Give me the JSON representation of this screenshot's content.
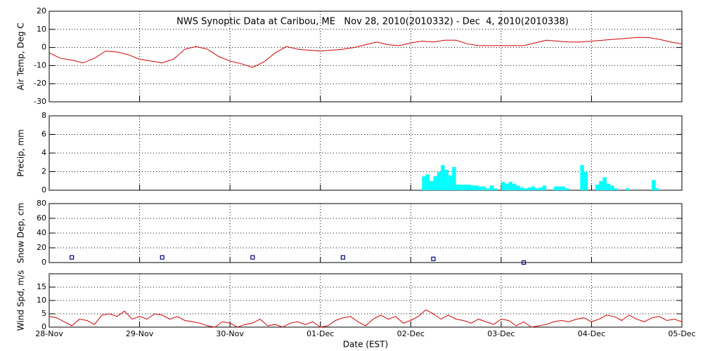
{
  "chart_data": [
    {
      "type": "line",
      "title": "NWS Synoptic Data at Caribou, ME   Nov 28, 2010(2010332) - Dec  4, 2010(2010338)",
      "ylabel": "Air Temp, Deg C",
      "color": "#d00000",
      "grid": true,
      "xlim": [
        0,
        168
      ],
      "xticks": [
        {
          "value": 0,
          "label": "28-Nov"
        },
        {
          "value": 24,
          "label": "29-Nov"
        },
        {
          "value": 48,
          "label": "30-Nov"
        },
        {
          "value": 72,
          "label": "01-Dec"
        },
        {
          "value": 96,
          "label": "02-Dec"
        },
        {
          "value": 120,
          "label": "03-Dec"
        },
        {
          "value": 144,
          "label": "04-Dec"
        },
        {
          "value": 168,
          "label": "05-Dec"
        }
      ],
      "ylim": [
        -30,
        20
      ],
      "yticks": [
        -30,
        -20,
        -10,
        0,
        10,
        20
      ],
      "x": [
        0,
        3,
        6,
        9,
        12,
        15,
        18,
        21,
        24,
        27,
        30,
        33,
        36,
        39,
        42,
        45,
        48,
        51,
        54,
        57,
        60,
        63,
        66,
        69,
        72,
        75,
        78,
        81,
        84,
        87,
        90,
        93,
        96,
        99,
        102,
        105,
        108,
        111,
        114,
        117,
        120,
        123,
        126,
        129,
        132,
        135,
        138,
        141,
        144,
        147,
        150,
        153,
        156,
        159,
        162,
        165,
        168
      ],
      "values": [
        -3,
        -6,
        -7,
        -8.5,
        -6,
        -2,
        -2.5,
        -4,
        -6.5,
        -7.5,
        -8.5,
        -6.5,
        -1,
        0.5,
        -1,
        -5,
        -7.5,
        -9,
        -11,
        -8,
        -3,
        0.5,
        -1,
        -1.5,
        -2,
        -1.5,
        -1,
        0,
        1.5,
        3,
        1.5,
        1,
        2.5,
        3.5,
        3,
        4,
        4,
        2,
        1,
        1,
        1,
        1,
        1,
        2.5,
        4,
        3.5,
        3,
        3,
        3.5,
        4,
        4.5,
        5,
        5.5,
        5.5,
        4.5,
        3,
        2
      ]
    },
    {
      "type": "bar",
      "ylabel": "Precip, mm",
      "color": "#00ffff",
      "grid": true,
      "xlim": [
        0,
        168
      ],
      "xticks": [
        {
          "value": 0,
          "label": "28-Nov"
        },
        {
          "value": 24,
          "label": "29-Nov"
        },
        {
          "value": 48,
          "label": "30-Nov"
        },
        {
          "value": 72,
          "label": "01-Dec"
        },
        {
          "value": 96,
          "label": "02-Dec"
        },
        {
          "value": 120,
          "label": "03-Dec"
        },
        {
          "value": 144,
          "label": "04-Dec"
        },
        {
          "value": 168,
          "label": "05-Dec"
        }
      ],
      "ylim": [
        0,
        8
      ],
      "yticks": [
        0,
        2,
        4,
        6,
        8
      ],
      "x": [
        99,
        100,
        101,
        102,
        103,
        104,
        105,
        106,
        107,
        108,
        109,
        110,
        111,
        112,
        113,
        114,
        115,
        116,
        117,
        118,
        119,
        120,
        121,
        122,
        123,
        124,
        125,
        126,
        127,
        128,
        129,
        130,
        131,
        132,
        133,
        134,
        135,
        136,
        137,
        138,
        139,
        140,
        141,
        142,
        143,
        144,
        145,
        146,
        147,
        148,
        149,
        150,
        151,
        152,
        153,
        154,
        155,
        156,
        157,
        158,
        159,
        160,
        161
      ],
      "values": [
        1.5,
        1.7,
        1.0,
        1.5,
        2.0,
        2.7,
        2.2,
        1.6,
        2.5,
        0.6,
        0.6,
        0.6,
        0.6,
        0.5,
        0.5,
        0.4,
        0.4,
        0.2,
        0.5,
        0.2,
        0,
        0.9,
        0.7,
        0.9,
        0.7,
        0.5,
        0.3,
        0.2,
        0.3,
        0.4,
        0.2,
        0.3,
        0.5,
        0,
        0,
        0.4,
        0.4,
        0.4,
        0.2,
        0,
        0,
        0,
        2.7,
        2.0,
        0,
        0,
        0.6,
        1.0,
        1.4,
        0.7,
        0.5,
        0.2,
        0,
        0,
        0.2,
        0,
        0,
        0,
        0,
        0,
        0,
        1.1,
        0.2
      ]
    },
    {
      "type": "scatter",
      "ylabel": "Snow Dep, cm",
      "color": "#000080",
      "grid": true,
      "xlim": [
        0,
        168
      ],
      "xticks": [
        {
          "value": 0,
          "label": "28-Nov"
        },
        {
          "value": 24,
          "label": "29-Nov"
        },
        {
          "value": 48,
          "label": "30-Nov"
        },
        {
          "value": 72,
          "label": "01-Dec"
        },
        {
          "value": 96,
          "label": "02-Dec"
        },
        {
          "value": 120,
          "label": "03-Dec"
        },
        {
          "value": 144,
          "label": "04-Dec"
        },
        {
          "value": 168,
          "label": "05-Dec"
        }
      ],
      "ylim": [
        0,
        80
      ],
      "yticks": [
        0,
        20,
        40,
        60,
        80
      ],
      "x": [
        6,
        30,
        54,
        78,
        102,
        126
      ],
      "values": [
        7,
        7,
        7,
        7,
        5,
        0
      ]
    },
    {
      "type": "line",
      "ylabel": "Wind Spd, m/s",
      "xlabel": "Date (EST)",
      "color": "#d00000",
      "grid": true,
      "xlim": [
        0,
        168
      ],
      "xticks": [
        {
          "value": 0,
          "label": "28-Nov"
        },
        {
          "value": 24,
          "label": "29-Nov"
        },
        {
          "value": 48,
          "label": "30-Nov"
        },
        {
          "value": 72,
          "label": "01-Dec"
        },
        {
          "value": 96,
          "label": "02-Dec"
        },
        {
          "value": 120,
          "label": "03-Dec"
        },
        {
          "value": 144,
          "label": "04-Dec"
        },
        {
          "value": 168,
          "label": "05-Dec"
        }
      ],
      "ylim": [
        0,
        20
      ],
      "yticks": [
        0,
        5,
        10,
        15
      ],
      "x": [
        0,
        2,
        4,
        6,
        8,
        10,
        12,
        14,
        16,
        18,
        20,
        22,
        24,
        26,
        28,
        30,
        32,
        34,
        36,
        38,
        40,
        42,
        44,
        46,
        48,
        50,
        52,
        54,
        56,
        58,
        60,
        62,
        64,
        66,
        68,
        70,
        72,
        74,
        76,
        78,
        80,
        82,
        84,
        86,
        88,
        90,
        92,
        94,
        96,
        98,
        100,
        102,
        104,
        106,
        108,
        110,
        112,
        114,
        116,
        118,
        120,
        122,
        124,
        126,
        128,
        130,
        132,
        134,
        136,
        138,
        140,
        142,
        144,
        146,
        148,
        150,
        152,
        154,
        156,
        158,
        160,
        162,
        164,
        166,
        168
      ],
      "values": [
        4,
        3.5,
        2,
        0.5,
        3,
        2.5,
        1,
        4.5,
        5,
        4,
        6,
        3,
        4,
        3,
        5,
        4.5,
        3,
        4,
        2.5,
        2,
        1.5,
        0.5,
        0,
        2,
        1.5,
        0,
        1,
        1.5,
        3,
        0.5,
        1,
        0,
        1.5,
        2,
        1,
        2,
        0,
        0.5,
        2.5,
        3.5,
        4,
        2,
        0.5,
        3,
        4.5,
        3,
        4,
        1.5,
        2.5,
        4,
        6.5,
        5,
        3,
        4.5,
        3,
        2.5,
        1.5,
        3,
        2,
        1,
        3,
        2.5,
        0.5,
        2,
        0,
        0.5,
        1,
        2,
        2.5,
        2,
        3,
        3.5,
        2,
        3,
        4.5,
        4,
        2.5,
        4.5,
        3,
        2,
        3.5,
        4,
        2.5,
        3,
        2
      ]
    }
  ]
}
